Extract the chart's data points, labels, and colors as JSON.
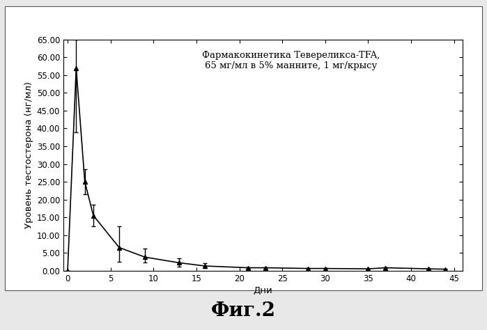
{
  "title_line1": "Фармакокинетика Тевереликса-TFA,",
  "title_line2": "65 мг/мл в 5% манните, 1 мг/крысу",
  "xlabel": "Дни",
  "ylabel": "Уровень тестостерона (нг/мл)",
  "fig_label": "Фиг.2",
  "x": [
    0,
    1,
    2,
    3,
    6,
    9,
    13,
    16,
    21,
    23,
    28,
    30,
    35,
    37,
    42,
    44
  ],
  "y": [
    0.0,
    57.0,
    25.0,
    15.5,
    6.5,
    3.8,
    2.2,
    1.3,
    0.8,
    0.8,
    0.6,
    0.6,
    0.5,
    0.8,
    0.5,
    0.4
  ],
  "yerr_low": [
    0.0,
    18.0,
    3.5,
    3.0,
    4.0,
    1.5,
    1.0,
    0.5,
    0.2,
    0.2,
    0.1,
    0.1,
    0.1,
    0.1,
    0.1,
    0.1
  ],
  "yerr_high": [
    0.0,
    8.0,
    3.5,
    3.0,
    6.0,
    2.5,
    1.3,
    0.8,
    0.2,
    0.2,
    0.1,
    0.1,
    0.1,
    0.1,
    0.1,
    0.1
  ],
  "ylim": [
    0.0,
    65.0
  ],
  "xlim": [
    -0.5,
    46
  ],
  "yticks": [
    0.0,
    5.0,
    10.0,
    15.0,
    20.0,
    25.0,
    30.0,
    35.0,
    40.0,
    45.0,
    50.0,
    55.0,
    60.0,
    65.0
  ],
  "xticks": [
    0,
    5,
    10,
    15,
    20,
    25,
    30,
    35,
    40,
    45
  ],
  "line_color": "#000000",
  "marker_color": "#000000",
  "bg_color": "#e8e8e8",
  "plot_bg_color": "#ffffff",
  "inner_bg_color": "#f5f5f5",
  "title_fontsize": 9.5,
  "axis_label_fontsize": 9.5,
  "tick_fontsize": 8.5,
  "fig_label_fontsize": 20
}
